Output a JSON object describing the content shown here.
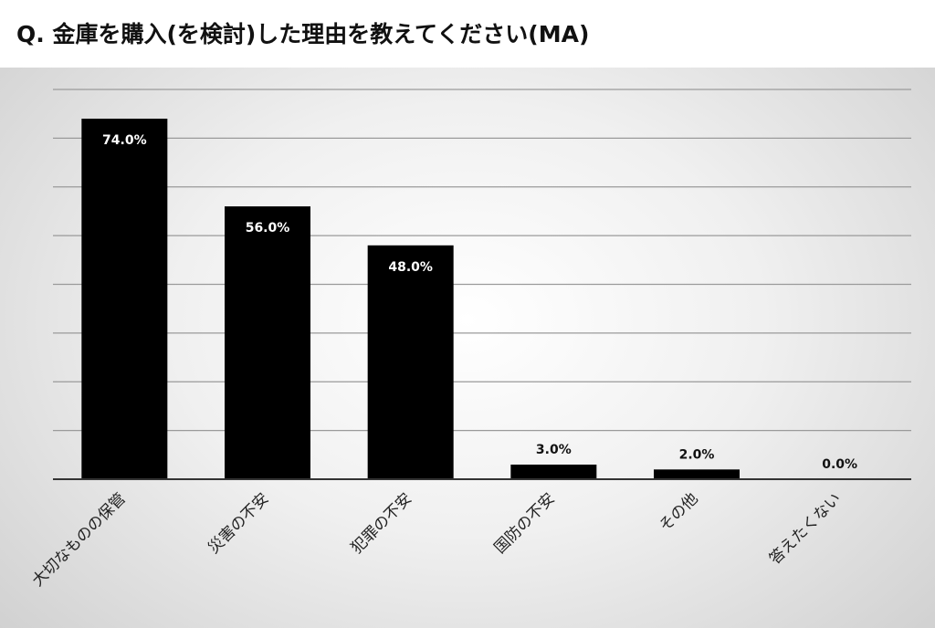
{
  "page": {
    "title": "Q. 金庫を購入(を検討)した理由を教えてください(MA)"
  },
  "chart_data": {
    "type": "bar",
    "title": "Q. 金庫を購入(を検討)した理由を教えてください(MA)",
    "categories": [
      "大切なものの保管",
      "災害の不安",
      "犯罪の不安",
      "国防の不安",
      "その他",
      "答えたくない"
    ],
    "values": [
      74.0,
      56.0,
      48.0,
      3.0,
      2.0,
      0.0
    ],
    "value_labels": [
      "74.0%",
      "56.0%",
      "48.0%",
      "3.0%",
      "2.0%",
      "0.0%"
    ],
    "xlabel": "",
    "ylabel": "",
    "ylim": [
      0,
      80
    ],
    "y_gridline_step": 10,
    "y_tick_labels_shown": false,
    "grid": true,
    "legend": "none",
    "colors": {
      "bar": "#000000",
      "gridline": "#9a9a9a",
      "axis": "#333333",
      "label_inside_bar": "#ffffff",
      "label_above_bar": "#111111"
    }
  }
}
